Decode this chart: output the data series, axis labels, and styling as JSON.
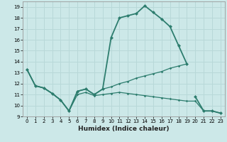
{
  "title": "",
  "xlabel": "Humidex (Indice chaleur)",
  "xlim": [
    -0.5,
    23.5
  ],
  "ylim": [
    9,
    19.5
  ],
  "yticks": [
    9,
    10,
    11,
    12,
    13,
    14,
    15,
    16,
    17,
    18,
    19
  ],
  "xticks": [
    0,
    1,
    2,
    3,
    4,
    5,
    6,
    7,
    8,
    9,
    10,
    11,
    12,
    13,
    14,
    15,
    16,
    17,
    18,
    19,
    20,
    21,
    22,
    23
  ],
  "bg_color": "#cce8e8",
  "grid_color": "#b8d8d8",
  "line_color": "#2d7d6e",
  "line1_x": [
    0,
    1,
    2,
    3,
    4,
    5,
    6,
    7,
    8,
    9,
    10,
    11,
    12,
    13,
    14,
    15,
    16,
    17,
    18,
    19
  ],
  "line1_y": [
    13.3,
    11.8,
    11.6,
    11.1,
    10.5,
    9.5,
    11.3,
    11.5,
    11.0,
    11.5,
    16.2,
    18.0,
    18.2,
    18.4,
    19.1,
    18.5,
    17.9,
    17.2,
    15.5,
    13.8
  ],
  "line2_x": [
    20,
    21,
    22,
    23
  ],
  "line2_y": [
    10.8,
    9.5,
    9.5,
    9.3
  ],
  "line3_x": [
    0,
    1,
    2,
    3,
    4,
    5,
    6,
    7,
    8,
    9,
    10,
    11,
    12,
    13,
    14,
    15,
    16,
    17,
    18,
    19
  ],
  "line3_y": [
    13.3,
    11.8,
    11.6,
    11.1,
    10.5,
    9.5,
    11.3,
    11.5,
    11.0,
    11.5,
    11.7,
    12.0,
    12.2,
    12.5,
    12.7,
    12.9,
    13.1,
    13.4,
    13.6,
    13.8
  ],
  "line4_x": [
    0,
    1,
    2,
    3,
    4,
    5,
    6,
    7,
    8,
    9,
    10,
    11,
    12,
    13,
    14,
    15,
    16,
    17,
    18,
    19,
    20,
    21,
    22,
    23
  ],
  "line4_y": [
    13.3,
    11.8,
    11.6,
    11.1,
    10.5,
    9.5,
    11.0,
    11.2,
    10.9,
    11.0,
    11.1,
    11.2,
    11.1,
    11.0,
    10.9,
    10.8,
    10.7,
    10.6,
    10.5,
    10.4,
    10.4,
    9.5,
    9.5,
    9.3
  ]
}
